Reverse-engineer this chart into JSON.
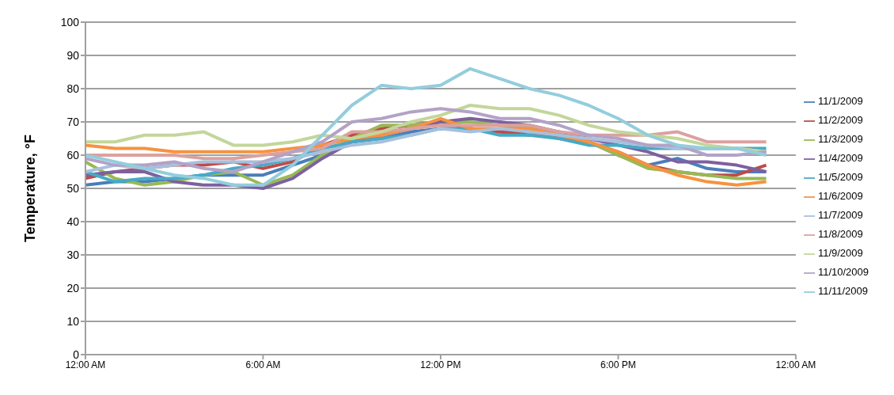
{
  "chart_data": {
    "type": "line",
    "ylabel": "Temperature, °F",
    "x": [
      0,
      1,
      2,
      3,
      4,
      5,
      6,
      7,
      8,
      9,
      10,
      11,
      12,
      13,
      14,
      15,
      16,
      17,
      18,
      19,
      20,
      21,
      22,
      23
    ],
    "xlim": [
      0,
      24
    ],
    "xticks": [
      {
        "value": 0,
        "label": "12:00 AM"
      },
      {
        "value": 6,
        "label": "6:00 AM"
      },
      {
        "value": 12,
        "label": "12:00 PM"
      },
      {
        "value": 18,
        "label": "6:00 PM"
      },
      {
        "value": 24,
        "label": "12:00 AM"
      }
    ],
    "ylim": [
      0,
      100
    ],
    "yticks": [
      0,
      10,
      20,
      30,
      40,
      50,
      60,
      70,
      80,
      90,
      100
    ],
    "grid": "y",
    "legend": "right",
    "marker": "none",
    "line_style": "solid",
    "series": [
      {
        "name": "11/1/2009",
        "color": "#4a7ebb",
        "values": [
          51,
          52,
          52,
          53,
          54,
          54,
          54,
          57,
          60,
          64,
          65,
          67,
          68,
          68,
          67,
          67,
          65,
          64,
          60,
          57,
          59,
          56,
          55,
          55
        ]
      },
      {
        "name": "11/2/2009",
        "color": "#be4b48",
        "values": [
          53,
          55,
          56,
          57,
          57,
          58,
          56,
          58,
          63,
          66,
          68,
          69,
          70,
          68,
          67,
          66,
          66,
          64,
          61,
          57,
          55,
          54,
          54,
          57
        ]
      },
      {
        "name": "11/3/2009",
        "color": "#98b954",
        "values": [
          58,
          53,
          51,
          52,
          54,
          55,
          51,
          54,
          60,
          65,
          69,
          69,
          70,
          70,
          69,
          68,
          67,
          64,
          60,
          56,
          55,
          54,
          53,
          53
        ]
      },
      {
        "name": "11/4/2009",
        "color": "#7d60a0",
        "values": [
          54,
          55,
          55,
          52,
          51,
          51,
          50,
          53,
          59,
          64,
          66,
          68,
          70,
          71,
          70,
          69,
          67,
          65,
          63,
          61,
          58,
          58,
          57,
          55
        ]
      },
      {
        "name": "11/5/2009",
        "color": "#46aac5",
        "values": [
          55,
          52,
          53,
          53,
          54,
          56,
          57,
          59,
          62,
          64,
          65,
          66,
          68,
          68,
          66,
          66,
          65,
          63,
          63,
          62,
          62,
          62,
          62,
          62
        ]
      },
      {
        "name": "11/6/2009",
        "color": "#f69240",
        "values": [
          63,
          62,
          62,
          61,
          61,
          61,
          61,
          62,
          63,
          65,
          66,
          68,
          71,
          68,
          68,
          68,
          66,
          64,
          61,
          57,
          54,
          52,
          51,
          52
        ]
      },
      {
        "name": "11/7/2009",
        "color": "#a7c0de",
        "values": [
          55,
          57,
          56,
          57,
          58,
          58,
          58,
          59,
          61,
          63,
          64,
          66,
          68,
          67,
          68,
          67,
          66,
          65,
          64,
          63,
          62,
          62,
          62,
          61
        ]
      },
      {
        "name": "11/8/2009",
        "color": "#dba19f",
        "values": [
          60,
          60,
          60,
          60,
          59,
          59,
          60,
          61,
          62,
          67,
          67,
          68,
          69,
          69,
          69,
          69,
          67,
          66,
          66,
          66,
          67,
          64,
          64,
          64
        ]
      },
      {
        "name": "11/9/2009",
        "color": "#c3d69b",
        "values": [
          64,
          64,
          66,
          66,
          67,
          63,
          63,
          64,
          66,
          65,
          67,
          70,
          72,
          75,
          74,
          74,
          72,
          69,
          67,
          66,
          65,
          63,
          62,
          61
        ]
      },
      {
        "name": "11/10/2009",
        "color": "#b3a2c7",
        "values": [
          59,
          57,
          57,
          58,
          56,
          55,
          58,
          61,
          64,
          70,
          71,
          73,
          74,
          73,
          71,
          71,
          69,
          66,
          65,
          63,
          63,
          60,
          60,
          61
        ]
      },
      {
        "name": "11/11/2009",
        "color": "#93cddd",
        "values": [
          60,
          58,
          56,
          54,
          53,
          51,
          51,
          57,
          66,
          75,
          81,
          80,
          81,
          86,
          83,
          80,
          78,
          75,
          71,
          66,
          63,
          62,
          62,
          60
        ]
      }
    ]
  }
}
